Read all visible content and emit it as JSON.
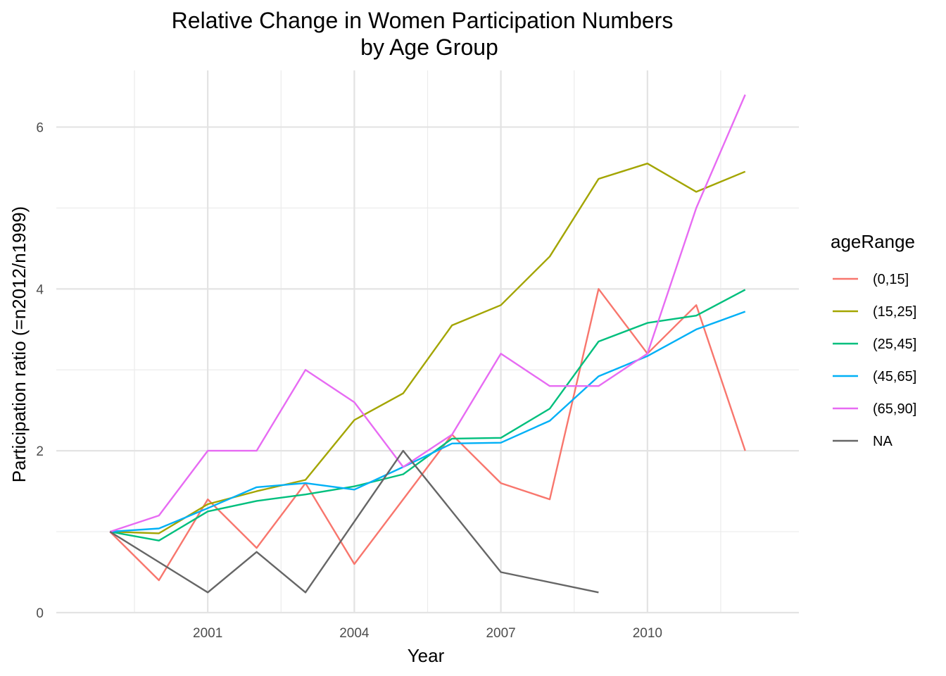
{
  "chart_data": {
    "type": "line",
    "title": "Relative Change in Women Participation Numbers",
    "subtitle": "by Age Group",
    "xlabel": "Year",
    "ylabel": "Participation ratio (=n2012/n1999)",
    "xlim": [
      1997.9,
      2013.1
    ],
    "ylim": [
      0,
      6.7
    ],
    "x_ticks": [
      2001,
      2004,
      2007,
      2010
    ],
    "x_tick_labels": [
      "2001",
      "2004",
      "2007",
      "2010"
    ],
    "y_ticks": [
      0,
      2,
      4,
      6
    ],
    "y_tick_labels": [
      "0",
      "2",
      "4",
      "6"
    ],
    "grid": true,
    "legend_title": "ageRange",
    "legend_position": "right",
    "series": [
      {
        "name": "(0,15]",
        "color": "#f8766d",
        "x": [
          1999,
          2000,
          2001,
          2002,
          2003,
          2004,
          2005,
          2006,
          2007,
          2008,
          2009,
          2010,
          2011,
          2012
        ],
        "values": [
          1.0,
          0.4,
          1.4,
          0.8,
          1.6,
          0.6,
          1.4,
          2.2,
          1.6,
          1.4,
          4.0,
          3.2,
          3.8,
          2.0
        ]
      },
      {
        "name": "(15,25]",
        "color": "#a3a500",
        "x": [
          1999,
          2000,
          2001,
          2002,
          2003,
          2004,
          2005,
          2006,
          2007,
          2008,
          2009,
          2010,
          2011,
          2012
        ],
        "values": [
          1.0,
          0.98,
          1.34,
          1.5,
          1.64,
          2.38,
          2.71,
          3.55,
          3.8,
          4.4,
          5.36,
          5.55,
          5.2,
          5.45
        ]
      },
      {
        "name": "(25,45]",
        "color": "#00bf7d",
        "x": [
          1999,
          2000,
          2001,
          2002,
          2003,
          2004,
          2005,
          2006,
          2007,
          2008,
          2009,
          2010,
          2011,
          2012
        ],
        "values": [
          1.0,
          0.89,
          1.25,
          1.38,
          1.46,
          1.56,
          1.71,
          2.15,
          2.16,
          2.52,
          3.35,
          3.58,
          3.67,
          3.99
        ]
      },
      {
        "name": "(45,65]",
        "color": "#00b0f6",
        "x": [
          1999,
          2000,
          2001,
          2002,
          2003,
          2004,
          2005,
          2006,
          2007,
          2008,
          2009,
          2010,
          2011,
          2012
        ],
        "values": [
          1.0,
          1.04,
          1.29,
          1.55,
          1.6,
          1.52,
          1.8,
          2.09,
          2.1,
          2.37,
          2.92,
          3.17,
          3.5,
          3.72
        ]
      },
      {
        "name": "(65,90]",
        "color": "#e76bf3",
        "x": [
          1999,
          2000,
          2001,
          2002,
          2003,
          2004,
          2005,
          2006,
          2007,
          2008,
          2009,
          2010,
          2011,
          2012
        ],
        "values": [
          1.0,
          1.2,
          2.0,
          2.0,
          3.0,
          2.6,
          1.8,
          2.2,
          3.2,
          2.8,
          2.8,
          3.2,
          5.0,
          6.4
        ]
      },
      {
        "name": "NA",
        "color": "#666666",
        "x": [
          1999,
          2001,
          2002,
          2003,
          2005,
          2007,
          2009
        ],
        "values": [
          1.0,
          0.25,
          0.75,
          0.25,
          2.0,
          0.5,
          0.25
        ]
      }
    ]
  }
}
